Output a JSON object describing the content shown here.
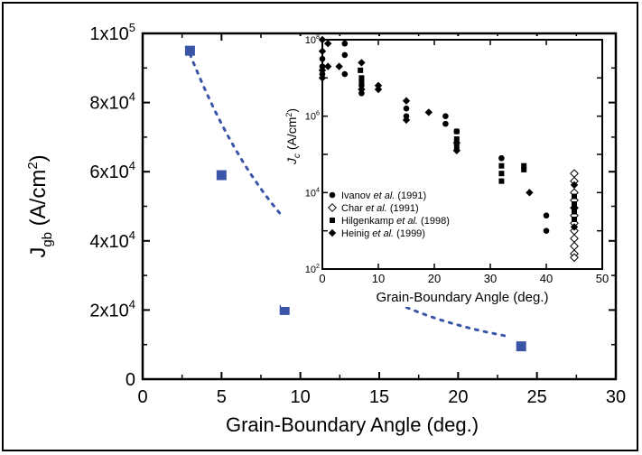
{
  "chart_data": [
    {
      "type": "scatter",
      "xlabel": "Grain-Boundary Angle (deg.)",
      "ylabel_main": "J",
      "ylabel_sub": "gb",
      "ylabel_unit": "(A/cm",
      "ylabel_sup": "2",
      "ylabel_end": ")",
      "xlim": [
        0,
        30
      ],
      "ylim": [
        0,
        100000
      ],
      "xticks": [
        "0",
        "5",
        "10",
        "15",
        "20",
        "25",
        "30"
      ],
      "yticks": [
        {
          "value": 0,
          "label": "0"
        },
        {
          "value": 20000,
          "mant": "2x10",
          "exp": "4"
        },
        {
          "value": 40000,
          "mant": "4x10",
          "exp": "4"
        },
        {
          "value": 60000,
          "mant": "6x10",
          "exp": "4"
        },
        {
          "value": 80000,
          "mant": "8x10",
          "exp": "4"
        },
        {
          "value": 100000,
          "mant": "1x10",
          "exp": "5"
        }
      ],
      "marker_color": "#3a55a8",
      "points": [
        {
          "x": 3,
          "y": 95000
        },
        {
          "x": 5,
          "y": 59000
        },
        {
          "x": 9,
          "y": 20000
        },
        {
          "x": 24,
          "y": 9500
        }
      ],
      "fit_curve": {
        "style": "dotted",
        "color": "#3a55a8",
        "a": 130000,
        "k": 0.13,
        "c": 6000,
        "x_range": [
          3,
          23
        ]
      }
    },
    {
      "type": "scatter",
      "scale": "log-y",
      "xlabel": "Grain-Boundary Angle (deg.)",
      "ylabel_main": "J",
      "ylabel_sub": "c",
      "ylabel_unit": "(A/cm",
      "ylabel_sup": "2",
      "ylabel_end": ")",
      "xlim": [
        0,
        50
      ],
      "ylim_log10": [
        2,
        8
      ],
      "xticks": [
        "0",
        "10",
        "20",
        "30",
        "40",
        "50"
      ],
      "yticks": [
        {
          "exp": "2",
          "value": 2
        },
        {
          "exp": "4",
          "value": 4
        },
        {
          "exp": "6",
          "value": 6
        },
        {
          "exp": "8",
          "value": 8
        }
      ],
      "legend": [
        {
          "marker": "circle",
          "name": "Ivanov",
          "italic": "et al.",
          "year": "(1991)"
        },
        {
          "marker": "diamond-open",
          "name": "Char",
          "italic": "et al.",
          "year": "(1991)"
        },
        {
          "marker": "square",
          "name": "Hilgenkamp",
          "italic": "et al.",
          "year": "(1998)"
        },
        {
          "marker": "diamond",
          "name": "Heinig",
          "italic": "et al.",
          "year": "(1999)"
        }
      ],
      "legend_position": "lower-left",
      "series": [
        {
          "marker": "circle",
          "points": [
            [
              0,
              7.3
            ],
            [
              0,
              7.1
            ],
            [
              0,
              7.5
            ],
            [
              4,
              7.9
            ],
            [
              4,
              7.1
            ],
            [
              4,
              7.6
            ],
            [
              7,
              6.8
            ],
            [
              7,
              6.6
            ],
            [
              15,
              6.2
            ],
            [
              15,
              6.0
            ],
            [
              22,
              6.0
            ],
            [
              22,
              5.8
            ],
            [
              24,
              5.6
            ],
            [
              32,
              4.9
            ],
            [
              40,
              3.4
            ],
            [
              40,
              3.0
            ]
          ]
        },
        {
          "marker": "diamond-open",
          "points": [
            [
              45,
              4.3
            ],
            [
              45,
              4.0
            ],
            [
              45,
              3.8
            ],
            [
              45,
              3.6
            ],
            [
              45,
              3.4
            ],
            [
              45,
              3.2
            ],
            [
              45,
              3.0
            ],
            [
              45,
              2.8
            ],
            [
              45,
              2.6
            ],
            [
              45,
              2.4
            ],
            [
              45,
              4.5
            ],
            [
              45,
              2.3
            ]
          ]
        },
        {
          "marker": "square",
          "points": [
            [
              6.8,
              7.2
            ],
            [
              7,
              7.0
            ],
            [
              7,
              6.9
            ],
            [
              32,
              4.7
            ],
            [
              32,
              4.5
            ],
            [
              32,
              4.3
            ],
            [
              36,
              4.7
            ],
            [
              36,
              4.6
            ],
            [
              24,
              5.6
            ],
            [
              24,
              5.4
            ],
            [
              24,
              5.2
            ],
            [
              45,
              3.9
            ],
            [
              45,
              3.7
            ],
            [
              45,
              3.5
            ],
            [
              45,
              3.3
            ]
          ]
        },
        {
          "marker": "diamond",
          "points": [
            [
              0,
              8.0
            ],
            [
              0,
              7.7
            ],
            [
              0,
              7.2
            ],
            [
              0,
              7.0
            ],
            [
              1,
              7.9
            ],
            [
              1,
              7.3
            ],
            [
              3,
              7.3
            ],
            [
              7,
              7.4
            ],
            [
              7,
              6.7
            ],
            [
              10,
              6.7
            ],
            [
              10,
              6.8
            ],
            [
              15,
              6.4
            ],
            [
              15,
              5.9
            ],
            [
              19,
              6.1
            ],
            [
              24,
              5.3
            ],
            [
              24,
              5.1
            ],
            [
              37,
              4.0
            ],
            [
              45,
              4.2
            ],
            [
              45,
              3.6
            ],
            [
              45,
              3.1
            ]
          ]
        }
      ]
    }
  ]
}
